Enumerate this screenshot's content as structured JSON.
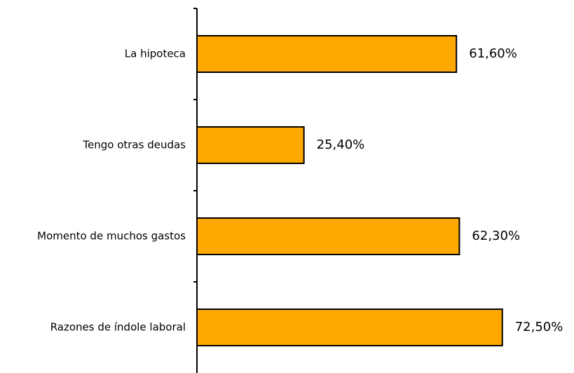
{
  "chart_data": {
    "type": "bar",
    "orientation": "horizontal",
    "categories": [
      "La hipoteca",
      "Tengo otras deudas",
      "Momento de muchos gastos",
      "Razones de índole laboral"
    ],
    "values": [
      61.6,
      25.4,
      62.3,
      72.5
    ],
    "value_labels": [
      "61,60%",
      "25,40%",
      "62,30%",
      "72,50%"
    ],
    "xlim": [
      0,
      100
    ],
    "grid": false,
    "legend": "none",
    "bar_color": "#FFA800",
    "bar_stroke": "#000000"
  }
}
